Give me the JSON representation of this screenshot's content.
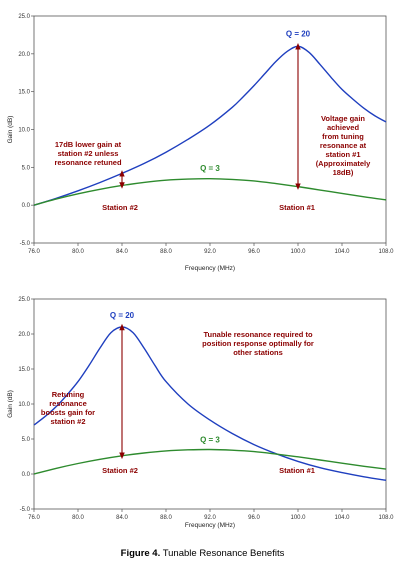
{
  "caption": {
    "label": "Figure 4.",
    "text": "Tunable Resonance Benefits"
  },
  "colors": {
    "q20": "#1f3fbf",
    "q3": "#2e8b2e",
    "annotation": "#8B0000"
  },
  "chart_data": [
    {
      "type": "line",
      "xlabel": "Frequency (MHz)",
      "ylabel": "Gain (dB)",
      "xlim": [
        76.0,
        108.0
      ],
      "ylim": [
        -5.0,
        25.0
      ],
      "x_ticks": [
        "76.0",
        "80.0",
        "84.0",
        "88.0",
        "92.0",
        "96.0",
        "100.0",
        "104.0",
        "108.0"
      ],
      "y_ticks": [
        "-5.0",
        "0.0",
        "5.0",
        "10.0",
        "15.0",
        "20.0",
        "25.0"
      ],
      "grid": false,
      "series": [
        {
          "name": "Q = 20",
          "x": [
            76,
            78,
            80,
            82,
            84,
            86,
            88,
            90,
            92,
            94,
            95,
            96,
            97,
            98,
            99,
            100,
            101,
            102,
            103,
            104,
            105,
            106,
            107,
            108
          ],
          "y": [
            0.0,
            0.9,
            1.9,
            3.0,
            4.2,
            5.5,
            7.0,
            8.7,
            10.6,
            12.9,
            14.3,
            15.8,
            17.4,
            19.0,
            20.3,
            21.0,
            20.2,
            18.6,
            16.9,
            15.3,
            14.0,
            12.8,
            11.8,
            11.0
          ]
        },
        {
          "name": "Q = 3",
          "x": [
            76,
            78,
            80,
            82,
            84,
            86,
            88,
            90,
            92,
            94,
            96,
            98,
            100,
            102,
            104,
            106,
            108
          ],
          "y": [
            0.0,
            0.8,
            1.5,
            2.1,
            2.6,
            3.0,
            3.3,
            3.45,
            3.5,
            3.4,
            3.2,
            2.85,
            2.45,
            2.0,
            1.55,
            1.1,
            0.7
          ]
        }
      ],
      "annotations": [
        {
          "text": "17dB lower gain at station #2 unless resonance retuned",
          "lines": [
            "17dB lower gain at",
            "station #2 unless",
            "resonance retuned"
          ]
        },
        {
          "text": "Voltage gain achieved from tuning resonance at station #1 (Approximately 18dB)",
          "lines": [
            "Voltage gain",
            "achieved",
            "from tuning",
            "resonance at",
            "station #1",
            "(Approximately",
            "18dB)"
          ]
        },
        {
          "text": "Station #2",
          "lines": [
            "Station #2"
          ]
        },
        {
          "text": "Station #1",
          "lines": [
            "Station #1"
          ]
        }
      ],
      "arrows": [
        {
          "x": 84,
          "y_from": 4.2,
          "y_to": 2.6
        },
        {
          "x": 100,
          "y_from": 21.0,
          "y_to": 2.45
        }
      ],
      "series_labels": [
        {
          "text": "Q = 20",
          "x": 100,
          "y": 22.3
        },
        {
          "text": "Q = 3",
          "x": 92,
          "y": 4.5
        }
      ]
    },
    {
      "type": "line",
      "xlabel": "Frequency (MHz)",
      "ylabel": "Gain (dB)",
      "xlim": [
        76.0,
        108.0
      ],
      "ylim": [
        -5.0,
        25.0
      ],
      "x_ticks": [
        "76.0",
        "80.0",
        "84.0",
        "88.0",
        "92.0",
        "96.0",
        "100.0",
        "104.0",
        "108.0"
      ],
      "y_ticks": [
        "-5.0",
        "0.0",
        "5.0",
        "10.0",
        "15.0",
        "20.0",
        "25.0"
      ],
      "grid": false,
      "series": [
        {
          "name": "Q = 20",
          "x": [
            76,
            77,
            78,
            79,
            80,
            81,
            82,
            83,
            84,
            85,
            86,
            87,
            88,
            90,
            92,
            94,
            96,
            98,
            100,
            102,
            104,
            106,
            108
          ],
          "y": [
            7.0,
            8.2,
            9.6,
            11.3,
            13.2,
            15.5,
            18.0,
            20.2,
            21.0,
            20.2,
            18.0,
            15.5,
            13.2,
            10.0,
            7.7,
            5.8,
            4.2,
            2.9,
            1.8,
            0.9,
            0.2,
            -0.4,
            -0.9
          ]
        },
        {
          "name": "Q = 3",
          "x": [
            76,
            78,
            80,
            82,
            84,
            86,
            88,
            90,
            92,
            94,
            96,
            98,
            100,
            102,
            104,
            106,
            108
          ],
          "y": [
            0.0,
            0.8,
            1.5,
            2.1,
            2.6,
            3.0,
            3.3,
            3.45,
            3.5,
            3.4,
            3.2,
            2.85,
            2.45,
            2.0,
            1.55,
            1.1,
            0.7
          ]
        }
      ],
      "annotations": [
        {
          "text": "Tunable resonance required to position response optimally for other stations",
          "lines": [
            "Tunable resonance required to",
            "position response optimally for",
            "other stations"
          ]
        },
        {
          "text": "Retuning resonance boosts gain for station #2",
          "lines": [
            "Retuning",
            "resonance",
            "boosts gain for",
            "station #2"
          ]
        },
        {
          "text": "Station #2",
          "lines": [
            "Station #2"
          ]
        },
        {
          "text": "Station #1",
          "lines": [
            "Station #1"
          ]
        }
      ],
      "arrows": [
        {
          "x": 84,
          "y_from": 21.0,
          "y_to": 2.6
        }
      ],
      "series_labels": [
        {
          "text": "Q = 20",
          "x": 84,
          "y": 22.3
        },
        {
          "text": "Q = 3",
          "x": 92,
          "y": 4.5
        }
      ]
    }
  ]
}
